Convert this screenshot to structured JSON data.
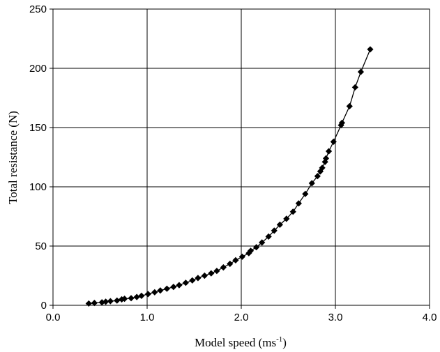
{
  "chart_data": {
    "type": "line",
    "title": "",
    "xlabel": "Model speed (ms",
    "xlabel_superscript": "-1",
    "xlabel_suffix": ")",
    "ylabel": "Total resistance (N)",
    "xlim": [
      0,
      4
    ],
    "ylim": [
      0,
      250
    ],
    "xticks": [
      "0.0",
      "1.0",
      "2.0",
      "3.0",
      "4.0"
    ],
    "yticks": [
      "0",
      "50",
      "100",
      "150",
      "200",
      "250"
    ],
    "grid": true,
    "legend": "none",
    "marker": "diamond",
    "colors": {
      "series": "#000000",
      "grid": "#000000",
      "background": "#ffffff"
    },
    "series": [
      {
        "x": [
          0.38,
          0.44,
          0.52,
          0.56,
          0.61,
          0.68,
          0.73,
          0.76,
          0.83,
          0.89,
          0.94,
          1.01,
          1.08,
          1.14,
          1.21,
          1.28,
          1.34,
          1.41,
          1.48,
          1.54,
          1.61,
          1.68,
          1.74,
          1.81,
          1.88,
          1.94,
          2.01,
          2.08,
          2.1,
          2.16,
          2.22,
          2.29,
          2.35,
          2.41,
          2.48,
          2.55,
          2.61,
          2.68,
          2.75,
          2.81,
          2.84,
          2.86,
          2.89,
          2.9,
          2.93,
          2.98,
          3.06,
          3.07,
          3.15,
          3.21,
          3.27,
          3.37
        ],
        "y": [
          1.5,
          2,
          2.5,
          3,
          3.5,
          4,
          5,
          5.5,
          6,
          7,
          8,
          9.5,
          11,
          12.5,
          14,
          15.5,
          17,
          19,
          21,
          23,
          25,
          27,
          29,
          32,
          35,
          38,
          41,
          44,
          46,
          49,
          53,
          58,
          63,
          68,
          73,
          79,
          86,
          94,
          103,
          109,
          113,
          116,
          121,
          124,
          130,
          138,
          152,
          154,
          168,
          184,
          197,
          216
        ]
      }
    ]
  }
}
